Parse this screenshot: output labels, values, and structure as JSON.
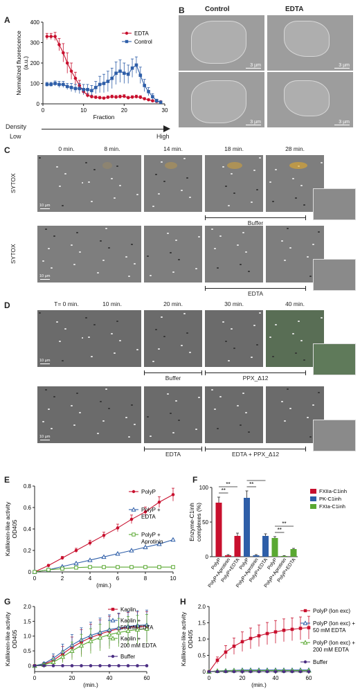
{
  "panel_labels": {
    "a": "A",
    "b": "B",
    "c": "C",
    "d": "D",
    "e": "E",
    "f": "F",
    "g": "G",
    "h": "H"
  },
  "panel_b": {
    "col_control": "Control",
    "col_edta": "EDTA",
    "scale": "3 µm"
  },
  "panel_c": {
    "times": [
      "0 min.",
      "8 min.",
      "14 min.",
      "18 min.",
      "28 min."
    ],
    "row_label": "SYTOX",
    "treat_top": "Buffer",
    "treat_bottom": "EDTA",
    "scale": "10 µm"
  },
  "panel_d": {
    "times": [
      "T= 0 min.",
      "10 min.",
      "20 min.",
      "30 min.",
      "40 min."
    ],
    "top_treat_1": "Buffer",
    "top_treat_2": "PPX_Δ12",
    "bottom_treat_1": "EDTA",
    "bottom_treat_2": "EDTA + PPX_Δ12",
    "scale": "10 µm"
  },
  "density_axis": {
    "title": "Density",
    "low": "Low",
    "high": "High"
  },
  "chart_data": [
    {
      "panel": "A",
      "type": "line",
      "xlabel": "Fraction",
      "ylabel": "Normalized fluorescence (a.u.)",
      "xlim": [
        0,
        30
      ],
      "ylim": [
        0,
        400
      ],
      "xticks": [
        0,
        10,
        20,
        30
      ],
      "yticks": [
        0,
        100,
        200,
        300,
        400
      ],
      "legend": "top-right",
      "x": [
        1,
        2,
        3,
        4,
        5,
        6,
        7,
        8,
        9,
        10,
        11,
        12,
        13,
        14,
        15,
        16,
        17,
        18,
        19,
        20,
        21,
        22,
        23,
        24,
        25,
        26,
        27,
        28,
        29
      ],
      "series": [
        {
          "name": "EDTA",
          "color": "#c8102e",
          "marker": "circle",
          "values": [
            330,
            330,
            330,
            290,
            250,
            200,
            160,
            125,
            90,
            60,
            42,
            35,
            32,
            30,
            28,
            32,
            35,
            33,
            35,
            37,
            30,
            33,
            35,
            32,
            25,
            20,
            15,
            12,
            10
          ],
          "err": [
            15,
            15,
            20,
            30,
            45,
            50,
            40,
            30,
            25,
            15,
            10,
            8,
            7,
            7,
            6,
            7,
            8,
            8,
            8,
            8,
            7,
            7,
            8,
            8,
            6,
            5,
            5,
            4,
            4
          ]
        },
        {
          "name": "Control",
          "color": "#2e5ea8",
          "marker": "square",
          "values": [
            95,
            95,
            100,
            95,
            95,
            85,
            80,
            75,
            75,
            70,
            70,
            65,
            80,
            95,
            100,
            110,
            125,
            150,
            160,
            150,
            145,
            175,
            190,
            140,
            90,
            60,
            35,
            15,
            8
          ],
          "err": [
            10,
            10,
            12,
            15,
            15,
            15,
            20,
            20,
            25,
            25,
            25,
            25,
            30,
            40,
            45,
            50,
            50,
            55,
            55,
            50,
            45,
            45,
            40,
            40,
            30,
            20,
            15,
            8,
            5
          ]
        }
      ]
    },
    {
      "panel": "E",
      "type": "line",
      "xlabel": "(min.)",
      "ylabel": "Kallikrein-like activity OD405",
      "xlim": [
        0,
        10
      ],
      "ylim": [
        0,
        0.8
      ],
      "xticks": [
        0,
        2,
        4,
        6,
        8,
        10
      ],
      "yticks": [
        0,
        0.2,
        0.4,
        0.6,
        0.8
      ],
      "ytick_labels": [
        "0",
        "0.2",
        "0.4",
        "0.6",
        "0.8"
      ],
      "x": [
        0,
        1,
        2,
        3,
        4,
        5,
        6,
        7,
        8,
        9,
        10
      ],
      "series": [
        {
          "name": "PolyP",
          "color": "#c8102e",
          "marker": "circle",
          "values": [
            0,
            0.06,
            0.13,
            0.2,
            0.27,
            0.34,
            0.41,
            0.49,
            0.56,
            0.65,
            0.72
          ],
          "err": [
            0,
            0.01,
            0.015,
            0.02,
            0.025,
            0.03,
            0.035,
            0.04,
            0.045,
            0.05,
            0.06
          ]
        },
        {
          "name": "PolyP + EDTA",
          "color": "#2e5ea8",
          "marker": "triangle",
          "values": [
            0,
            0.02,
            0.05,
            0.08,
            0.11,
            0.14,
            0.17,
            0.2,
            0.23,
            0.26,
            0.3
          ],
          "err": [
            0,
            0.005,
            0.005,
            0.005,
            0.005,
            0.005,
            0.005,
            0.005,
            0.005,
            0.005,
            0.005
          ]
        },
        {
          "name": "PolyP + Aprotinin",
          "color": "#5aa832",
          "marker": "square-open",
          "values": [
            0,
            0.02,
            0.03,
            0.04,
            0.045,
            0.045,
            0.045,
            0.045,
            0.045,
            0.045,
            0.045
          ],
          "err": [
            0,
            0.003,
            0.003,
            0.003,
            0.003,
            0.003,
            0.003,
            0.003,
            0.003,
            0.003,
            0.003
          ]
        }
      ]
    },
    {
      "panel": "F",
      "type": "bar",
      "ylabel": "Enzyme-C1inh complexes (%)",
      "ylim": [
        0,
        100
      ],
      "yticks": [
        0,
        50,
        100
      ],
      "categories": [
        "PolyP",
        "PolyP+Aprotinin",
        "PolyP+EDTA",
        "PolyP",
        "PolyP+Aprotinin",
        "PolyP+EDTA",
        "PolyP",
        "PolyP+Aprotinin",
        "PolyP+EDTA"
      ],
      "values": [
        78,
        2,
        30,
        85,
        2,
        30,
        27,
        1,
        11
      ],
      "err": [
        8,
        1,
        4,
        10,
        1,
        3,
        2,
        0.5,
        1
      ],
      "colors": [
        "#c8102e",
        "#c8102e",
        "#c8102e",
        "#2e5ea8",
        "#2e5ea8",
        "#2e5ea8",
        "#5aa832",
        "#5aa832",
        "#5aa832"
      ],
      "legend": [
        {
          "name": "FXIIa-C1inh",
          "color": "#c8102e"
        },
        {
          "name": "PK-C1inh",
          "color": "#2e5ea8"
        },
        {
          "name": "FXIa-C1inh",
          "color": "#5aa832"
        }
      ],
      "significance": [
        [
          0,
          1
        ],
        [
          0,
          2
        ],
        [
          3,
          4
        ],
        [
          3,
          5
        ],
        [
          6,
          7
        ],
        [
          6,
          8
        ]
      ],
      "sig_label": "**"
    },
    {
      "panel": "G",
      "type": "line",
      "xlabel": "(min.)",
      "ylabel": "Kallikrein-like activity OD405",
      "xlim": [
        0,
        60
      ],
      "ylim": [
        -0.2,
        2.0
      ],
      "xticks": [
        0,
        20,
        40,
        60
      ],
      "yticks": [
        0,
        0.5,
        1.0,
        1.5,
        2.0
      ],
      "ytick_labels": [
        "0",
        "0.5",
        "1.0",
        "1.5",
        "2.0"
      ],
      "x": [
        0,
        5,
        10,
        15,
        20,
        25,
        30,
        35,
        40,
        45,
        50,
        55,
        60
      ],
      "series": [
        {
          "name": "Kaolin",
          "color": "#c8102e",
          "marker": "square",
          "values": [
            0,
            0.05,
            0.18,
            0.4,
            0.62,
            0.8,
            0.95,
            1.07,
            1.17,
            1.25,
            1.3,
            1.32,
            1.33
          ],
          "err": [
            0,
            0.05,
            0.15,
            0.25,
            0.35,
            0.42,
            0.45,
            0.48,
            0.5,
            0.5,
            0.5,
            0.5,
            0.5
          ]
        },
        {
          "name": "Kaolin + 50 mM EDTA",
          "color": "#2e5ea8",
          "marker": "triangle",
          "values": [
            0,
            0.07,
            0.25,
            0.48,
            0.7,
            0.88,
            1.02,
            1.13,
            1.22,
            1.28,
            1.33,
            1.36,
            1.38
          ],
          "err": [
            0,
            0.05,
            0.15,
            0.25,
            0.35,
            0.4,
            0.45,
            0.48,
            0.5,
            0.5,
            0.5,
            0.5,
            0.5
          ]
        },
        {
          "name": "Kaolin + 200 mM EDTA",
          "color": "#5aa832",
          "marker": "triangle",
          "values": [
            0,
            0.03,
            0.12,
            0.3,
            0.5,
            0.68,
            0.83,
            0.95,
            1.05,
            1.12,
            1.18,
            1.22,
            1.25
          ],
          "err": [
            0,
            0.05,
            0.12,
            0.2,
            0.3,
            0.38,
            0.42,
            0.45,
            0.48,
            0.48,
            0.48,
            0.48,
            0.48
          ]
        },
        {
          "name": "Buffer",
          "color": "#4b2e83",
          "marker": "circle",
          "values": [
            0,
            0,
            0,
            0,
            0,
            0,
            0,
            0,
            0,
            0,
            0,
            0,
            0
          ],
          "err": [
            0,
            0,
            0,
            0,
            0,
            0,
            0,
            0,
            0,
            0,
            0,
            0,
            0
          ]
        }
      ]
    },
    {
      "panel": "H",
      "type": "line",
      "xlabel": "(min.)",
      "ylabel": "Kallikrein-like activity OD405",
      "xlim": [
        0,
        60
      ],
      "ylim": [
        0,
        2.0
      ],
      "xticks": [
        0,
        20,
        40,
        60
      ],
      "yticks": [
        0,
        0.5,
        1.0,
        1.5,
        2.0
      ],
      "ytick_labels": [
        "0",
        "0.5",
        "1.0",
        "1.5",
        "2.0"
      ],
      "x": [
        0,
        5,
        10,
        15,
        20,
        25,
        30,
        35,
        40,
        45,
        50,
        55,
        60
      ],
      "series": [
        {
          "name": "PolyP (Ion exc)",
          "color": "#c8102e",
          "marker": "square",
          "values": [
            0,
            0.35,
            0.6,
            0.78,
            0.92,
            1.02,
            1.1,
            1.17,
            1.22,
            1.27,
            1.3,
            1.33,
            1.35
          ],
          "err": [
            0,
            0.1,
            0.2,
            0.25,
            0.3,
            0.32,
            0.33,
            0.34,
            0.35,
            0.35,
            0.35,
            0.35,
            0.35
          ]
        },
        {
          "name": "PolyP (Ion exc) + 50 mM EDTA",
          "color": "#2e5ea8",
          "marker": "triangle",
          "values": [
            0,
            0.02,
            0.03,
            0.04,
            0.05,
            0.05,
            0.05,
            0.05,
            0.05,
            0.05,
            0.05,
            0.05,
            0.05
          ],
          "err": [
            0,
            0.01,
            0.01,
            0.01,
            0.01,
            0.01,
            0.01,
            0.01,
            0.01,
            0.01,
            0.01,
            0.01,
            0.01
          ]
        },
        {
          "name": "PolyP (Ion exc) + 200 mM EDTA",
          "color": "#5aa832",
          "marker": "triangle",
          "values": [
            0,
            0.02,
            0.02,
            0.03,
            0.03,
            0.03,
            0.03,
            0.03,
            0.03,
            0.03,
            0.03,
            0.03,
            0.03
          ],
          "err": [
            0,
            0.01,
            0.01,
            0.01,
            0.01,
            0.01,
            0.01,
            0.01,
            0.01,
            0.01,
            0.01,
            0.01,
            0.01
          ]
        },
        {
          "name": "Buffer",
          "color": "#4b2e83",
          "marker": "circle",
          "values": [
            0,
            0,
            0,
            0,
            0,
            0,
            0,
            0,
            0,
            0,
            0,
            0,
            0
          ],
          "err": [
            0,
            0,
            0,
            0,
            0,
            0,
            0,
            0,
            0,
            0,
            0,
            0,
            0
          ]
        }
      ]
    }
  ]
}
